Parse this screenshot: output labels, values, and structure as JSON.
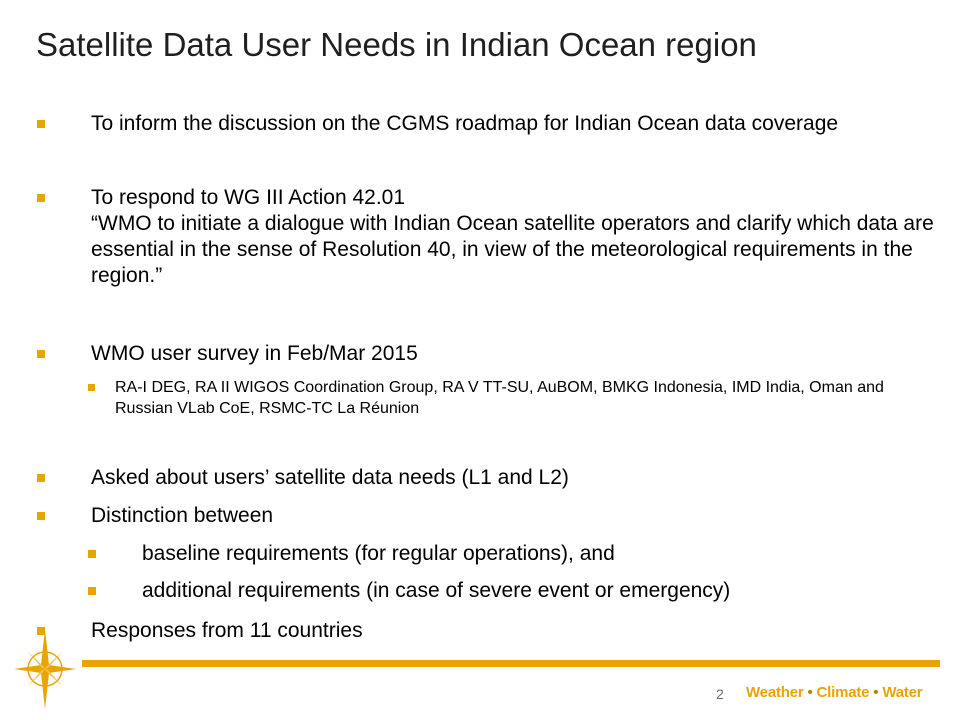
{
  "title": "Satellite Data User Needs in Indian Ocean region",
  "bullets": {
    "b1": "To inform the discussion on the CGMS roadmap for Indian Ocean data coverage",
    "b2_line1": "To respond to WG III Action 42.01",
    "b2_line2": "“WMO to initiate a dialogue with Indian Ocean satellite operators and clarify which data are essential in the sense of Resolution 40, in view of the meteorological requirements in the region.”",
    "b3": "WMO user survey in Feb/Mar 2015",
    "b3_sub": "RA-I DEG, RA II WIGOS Coordination Group, RA V TT-SU, AuBOM, BMKG Indonesia, IMD India, Oman and Russian VLab CoE, RSMC-TC La Réunion",
    "b4": "Asked about users’ satellite data needs (L1 and L2)",
    "b5": "Distinction between",
    "b5_sub1": "baseline requirements (for regular operations), and",
    "b5_sub2": "additional requirements (in case of severe event or emergency)",
    "b6": "Responses from 11 countries"
  },
  "footer": {
    "page_number": "2",
    "brand_weather": "Weather",
    "brand_climate": "Climate",
    "brand_water": "Water",
    "brand_sep": "•",
    "logo_icon": "wmo-compass-star-icon"
  },
  "colors": {
    "accent": "#e8a400",
    "title": "#1f1f1f"
  }
}
